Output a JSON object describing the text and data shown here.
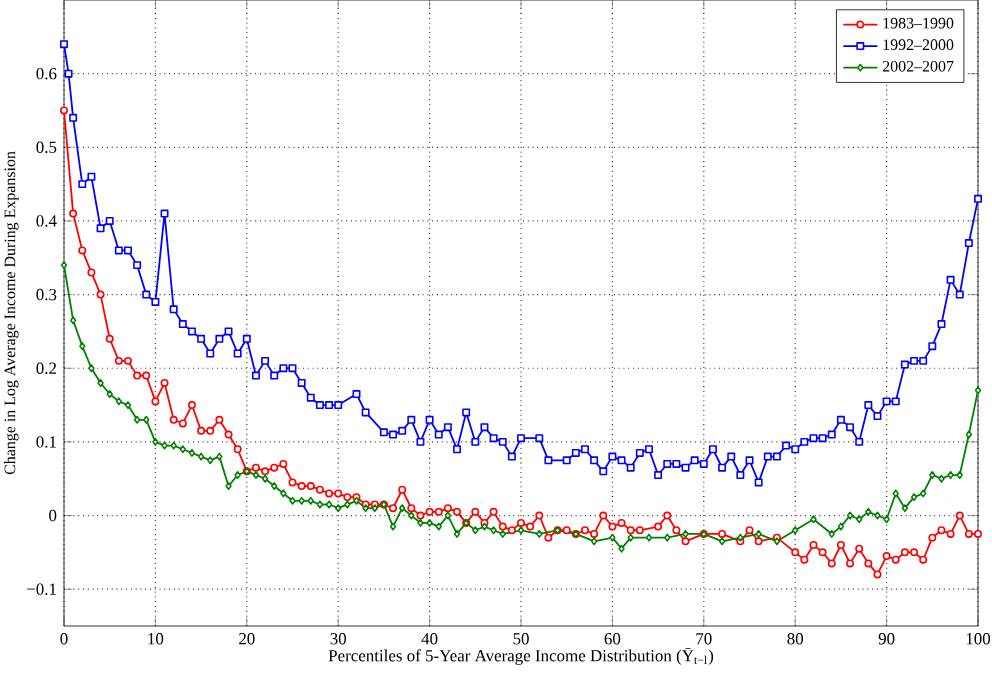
{
  "chart_data": {
    "type": "line",
    "xlabel": "Percentiles of 5-Year Average Income Distribution (Ȳ$_{t−l}$)",
    "ylabel": "Change in Log Average Income During Expansion",
    "xlim": [
      0,
      100
    ],
    "ylim": [
      -0.15,
      0.7
    ],
    "xticks": [
      0,
      10,
      20,
      30,
      40,
      50,
      60,
      70,
      80,
      90,
      100
    ],
    "yticks": [
      {
        "value": -0.1,
        "label": "−0.1"
      },
      0,
      0.1,
      0.2,
      0.3,
      0.4,
      0.5,
      0.6
    ],
    "grid": true,
    "legend": "top right",
    "series": [
      {
        "name": "1983–1990",
        "color": "#ff0000",
        "marker": "circle",
        "x": [
          0,
          1,
          2,
          3,
          4,
          5,
          6,
          7,
          8,
          9,
          10,
          11,
          12,
          13,
          14,
          15,
          16,
          17,
          18,
          19,
          20,
          21,
          22,
          23,
          24,
          25,
          26,
          27,
          28,
          29,
          30,
          31,
          32,
          33,
          34,
          35,
          36,
          37,
          38,
          39,
          40,
          41,
          42,
          43,
          44,
          45,
          46,
          47,
          48,
          49,
          50,
          51,
          52,
          53,
          54,
          55,
          56,
          57,
          58,
          59,
          60,
          61,
          62,
          63,
          65,
          66,
          67,
          68,
          70,
          72,
          74,
          75,
          76,
          78,
          80,
          81,
          82,
          83,
          84,
          85,
          86,
          87,
          88,
          89,
          90,
          91,
          92,
          93,
          94,
          95,
          96,
          97,
          98,
          99,
          100
        ],
        "values": [
          0.55,
          0.41,
          0.36,
          0.33,
          0.3,
          0.24,
          0.21,
          0.21,
          0.19,
          0.19,
          0.155,
          0.18,
          0.13,
          0.125,
          0.15,
          0.115,
          0.115,
          0.13,
          0.11,
          0.09,
          0.06,
          0.065,
          0.06,
          0.065,
          0.07,
          0.045,
          0.04,
          0.04,
          0.035,
          0.03,
          0.03,
          0.025,
          0.025,
          0.015,
          0.015,
          0.015,
          0.01,
          0.035,
          0.01,
          0.0,
          0.005,
          0.005,
          0.01,
          0.005,
          -0.01,
          0.005,
          -0.01,
          0.005,
          -0.015,
          -0.02,
          -0.01,
          -0.015,
          0.0,
          -0.03,
          -0.02,
          -0.02,
          -0.025,
          -0.02,
          -0.025,
          0.0,
          -0.015,
          -0.01,
          -0.02,
          -0.02,
          -0.015,
          0.0,
          -0.02,
          -0.035,
          -0.025,
          -0.025,
          -0.035,
          -0.02,
          -0.035,
          -0.03,
          -0.05,
          -0.06,
          -0.04,
          -0.05,
          -0.065,
          -0.04,
          -0.065,
          -0.045,
          -0.065,
          -0.08,
          -0.055,
          -0.06,
          -0.05,
          -0.05,
          -0.06,
          -0.03,
          -0.02,
          -0.025,
          0.0,
          -0.025,
          -0.025
        ]
      },
      {
        "name": "1992–2000",
        "color": "#0000ff",
        "marker": "square",
        "x": [
          0,
          0.5,
          1,
          2,
          3,
          4,
          5,
          6,
          7,
          8,
          9,
          10,
          11,
          12,
          13,
          14,
          15,
          16,
          17,
          18,
          19,
          20,
          21,
          22,
          23,
          24,
          25,
          26,
          27,
          28,
          29,
          30,
          32,
          33,
          35,
          36,
          37,
          38,
          39,
          40,
          41,
          42,
          43,
          44,
          45,
          46,
          47,
          48,
          49,
          50,
          52,
          53,
          55,
          56,
          57,
          58,
          59,
          60,
          61,
          62,
          63,
          64,
          65,
          66,
          67,
          68,
          69,
          70,
          71,
          72,
          73,
          74,
          75,
          76,
          77,
          78,
          79,
          80,
          81,
          82,
          83,
          84,
          85,
          86,
          87,
          88,
          89,
          90,
          91,
          92,
          93,
          94,
          95,
          96,
          97,
          98,
          99,
          100
        ],
        "values": [
          0.64,
          0.6,
          0.54,
          0.45,
          0.46,
          0.39,
          0.4,
          0.36,
          0.36,
          0.34,
          0.3,
          0.29,
          0.41,
          0.28,
          0.26,
          0.25,
          0.24,
          0.22,
          0.24,
          0.25,
          0.22,
          0.24,
          0.19,
          0.21,
          0.19,
          0.2,
          0.2,
          0.18,
          0.16,
          0.15,
          0.15,
          0.15,
          0.165,
          0.14,
          0.113,
          0.11,
          0.115,
          0.13,
          0.1,
          0.13,
          0.11,
          0.12,
          0.09,
          0.14,
          0.1,
          0.12,
          0.105,
          0.1,
          0.08,
          0.105,
          0.105,
          0.075,
          0.075,
          0.085,
          0.09,
          0.075,
          0.06,
          0.08,
          0.075,
          0.065,
          0.085,
          0.09,
          0.055,
          0.07,
          0.07,
          0.065,
          0.075,
          0.07,
          0.09,
          0.065,
          0.08,
          0.055,
          0.075,
          0.045,
          0.08,
          0.08,
          0.095,
          0.09,
          0.1,
          0.105,
          0.105,
          0.11,
          0.13,
          0.12,
          0.1,
          0.15,
          0.135,
          0.155,
          0.155,
          0.205,
          0.21,
          0.21,
          0.23,
          0.26,
          0.32,
          0.3,
          0.37,
          0.43
        ]
      },
      {
        "name": "2002–2007",
        "color": "#008000",
        "marker": "diamond",
        "x": [
          0,
          1,
          2,
          3,
          4,
          5,
          6,
          7,
          8,
          9,
          10,
          11,
          12,
          13,
          14,
          15,
          16,
          17,
          18,
          19,
          20,
          21,
          22,
          23,
          24,
          25,
          26,
          27,
          28,
          29,
          30,
          31,
          32,
          33,
          34,
          35,
          36,
          37,
          38,
          39,
          40,
          41,
          42,
          43,
          44,
          45,
          46,
          47,
          48,
          50,
          52,
          54,
          56,
          58,
          60,
          61,
          62,
          64,
          66,
          68,
          70,
          72,
          74,
          76,
          78,
          80,
          82,
          84,
          85,
          86,
          87,
          88,
          89,
          90,
          91,
          92,
          93,
          94,
          95,
          96,
          97,
          98,
          99,
          100
        ],
        "values": [
          0.34,
          0.265,
          0.23,
          0.2,
          0.18,
          0.165,
          0.155,
          0.15,
          0.13,
          0.13,
          0.1,
          0.095,
          0.095,
          0.09,
          0.085,
          0.08,
          0.075,
          0.08,
          0.04,
          0.055,
          0.06,
          0.055,
          0.05,
          0.04,
          0.03,
          0.02,
          0.02,
          0.02,
          0.015,
          0.015,
          0.01,
          0.015,
          0.02,
          0.01,
          0.01,
          0.015,
          -0.015,
          0.01,
          0.0,
          -0.01,
          -0.01,
          -0.015,
          0.0,
          -0.025,
          -0.01,
          -0.02,
          -0.015,
          -0.02,
          -0.025,
          -0.02,
          -0.025,
          -0.02,
          -0.025,
          -0.035,
          -0.03,
          -0.045,
          -0.03,
          -0.03,
          -0.03,
          -0.025,
          -0.025,
          -0.035,
          -0.03,
          -0.025,
          -0.035,
          -0.02,
          -0.005,
          -0.025,
          -0.015,
          0.0,
          -0.005,
          0.005,
          0.0,
          -0.005,
          0.03,
          0.01,
          0.025,
          0.03,
          0.055,
          0.05,
          0.055,
          0.055,
          0.11,
          0.17
        ]
      }
    ]
  }
}
